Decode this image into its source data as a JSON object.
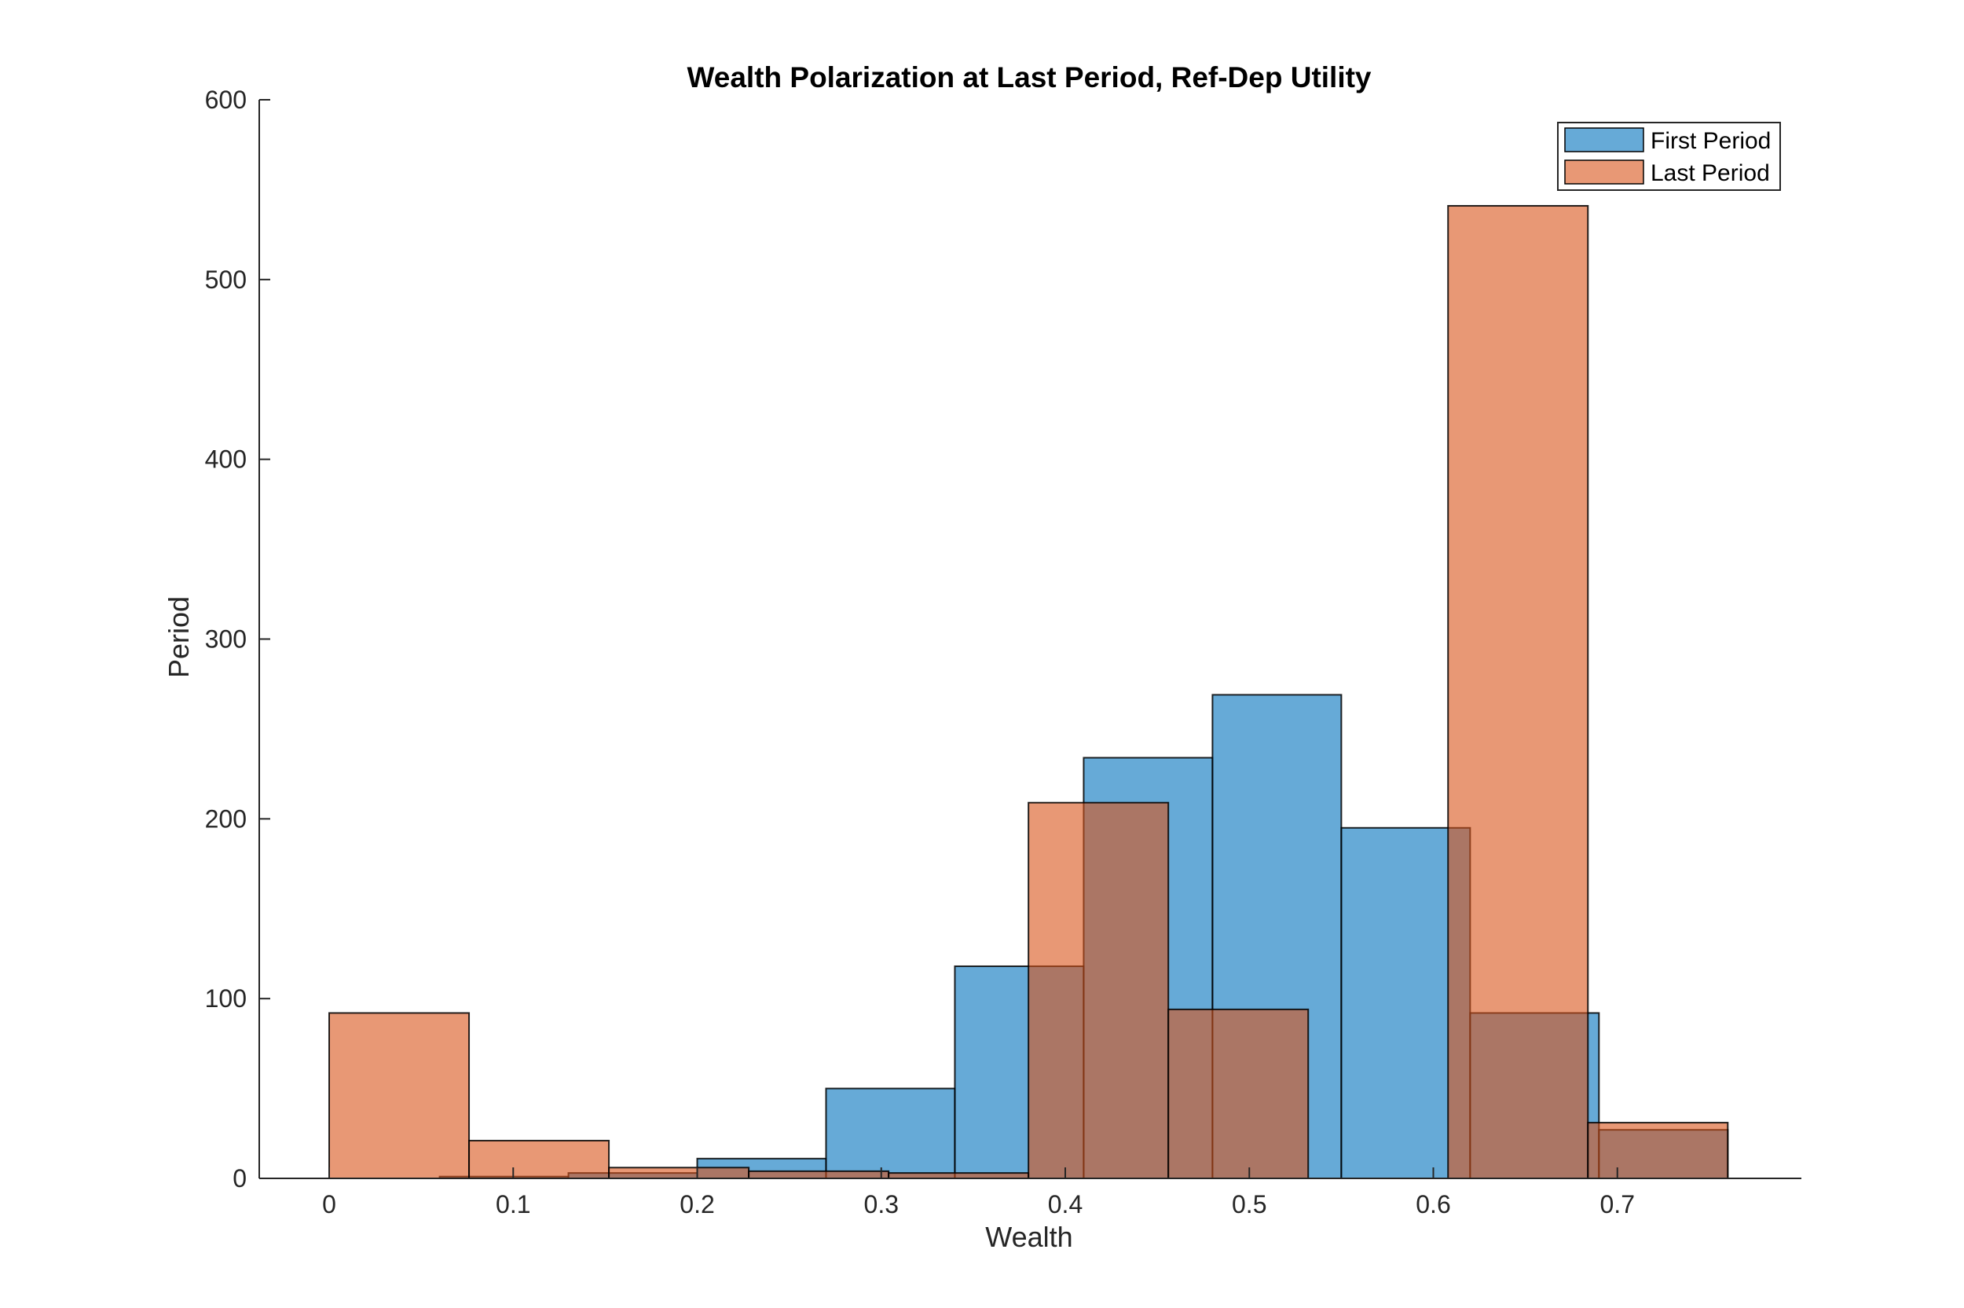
{
  "colors": {
    "first": "#0072BD",
    "last": "#D95319",
    "axis": "#262626",
    "background": "#ffffff"
  },
  "chart_data": {
    "type": "bar",
    "subtype": "overlaid-histogram",
    "title": "Wealth Polarization at Last Period, Ref-Dep Utility",
    "xlabel": "Wealth",
    "ylabel": "Period",
    "xlim": [
      -0.038,
      0.8
    ],
    "ylim": [
      0,
      600
    ],
    "xticks": [
      0,
      0.1,
      0.2,
      0.3,
      0.4,
      0.5,
      0.6,
      0.7
    ],
    "xtick_labels": [
      "0",
      "0.1",
      "0.2",
      "0.3",
      "0.4",
      "0.5",
      "0.6",
      "0.7"
    ],
    "yticks": [
      0,
      100,
      200,
      300,
      400,
      500,
      600
    ],
    "ytick_labels": [
      "0",
      "100",
      "200",
      "300",
      "400",
      "500",
      "600"
    ],
    "grid": false,
    "legend_position": "top-right",
    "bar_alpha": 0.6,
    "series": [
      {
        "name": "First Period",
        "color": "#0072BD",
        "bins": [
          {
            "x0": 0.06,
            "x1": 0.13,
            "value": 1
          },
          {
            "x0": 0.13,
            "x1": 0.2,
            "value": 3
          },
          {
            "x0": 0.2,
            "x1": 0.27,
            "value": 11
          },
          {
            "x0": 0.27,
            "x1": 0.34,
            "value": 50
          },
          {
            "x0": 0.34,
            "x1": 0.41,
            "value": 118
          },
          {
            "x0": 0.41,
            "x1": 0.48,
            "value": 234
          },
          {
            "x0": 0.48,
            "x1": 0.55,
            "value": 269
          },
          {
            "x0": 0.55,
            "x1": 0.62,
            "value": 195
          },
          {
            "x0": 0.62,
            "x1": 0.69,
            "value": 92
          },
          {
            "x0": 0.69,
            "x1": 0.76,
            "value": 27
          }
        ]
      },
      {
        "name": "Last Period",
        "color": "#D95319",
        "bins": [
          {
            "x0": 0.0,
            "x1": 0.076,
            "value": 92
          },
          {
            "x0": 0.076,
            "x1": 0.152,
            "value": 21
          },
          {
            "x0": 0.152,
            "x1": 0.228,
            "value": 6
          },
          {
            "x0": 0.228,
            "x1": 0.304,
            "value": 4
          },
          {
            "x0": 0.304,
            "x1": 0.38,
            "value": 3
          },
          {
            "x0": 0.38,
            "x1": 0.456,
            "value": 209
          },
          {
            "x0": 0.456,
            "x1": 0.532,
            "value": 94
          },
          {
            "x0": 0.532,
            "x1": 0.608,
            "value": 0
          },
          {
            "x0": 0.608,
            "x1": 0.684,
            "value": 541
          },
          {
            "x0": 0.684,
            "x1": 0.76,
            "value": 31
          }
        ]
      }
    ]
  }
}
